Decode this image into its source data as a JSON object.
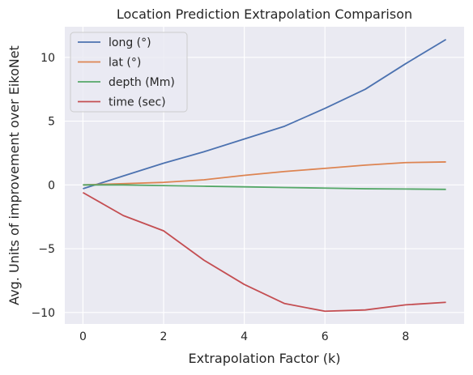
{
  "chart_data": {
    "type": "line",
    "title": "Location Prediction Extrapolation Comparison",
    "xlabel": "Extrapolation Factor (k)",
    "ylabel": "Avg. Units of improvement over EikoNet",
    "x": [
      0,
      1,
      2,
      3,
      4,
      5,
      6,
      7,
      8,
      9
    ],
    "xlim": [
      -0.45,
      9.45
    ],
    "ylim": [
      -10.9,
      12.4
    ],
    "xticks": [
      0,
      2,
      4,
      6,
      8
    ],
    "yticks": [
      -10,
      -5,
      0,
      5,
      10
    ],
    "xtick_labels": [
      "0",
      "2",
      "4",
      "6",
      "8"
    ],
    "ytick_labels": [
      "−10",
      "−5",
      "0",
      "5",
      "10"
    ],
    "grid": true,
    "legend_position": "upper-left",
    "series": [
      {
        "name": "long (°)",
        "color": "#4c72b0",
        "values": [
          -0.3,
          0.7,
          1.7,
          2.6,
          3.6,
          4.6,
          6.0,
          7.5,
          9.5,
          11.4
        ]
      },
      {
        "name": "lat (°)",
        "color": "#dd8452",
        "values": [
          0.0,
          0.1,
          0.2,
          0.4,
          0.75,
          1.05,
          1.3,
          1.55,
          1.75,
          1.8
        ]
      },
      {
        "name": "depth (Mm)",
        "color": "#55a868",
        "values": [
          0.0,
          0.0,
          -0.05,
          -0.1,
          -0.15,
          -0.2,
          -0.25,
          -0.3,
          -0.32,
          -0.35
        ]
      },
      {
        "name": "time (sec)",
        "color": "#c44e52",
        "values": [
          -0.6,
          -2.4,
          -3.6,
          -5.9,
          -7.8,
          -9.3,
          -9.9,
          -9.8,
          -9.4,
          -9.2
        ]
      }
    ]
  }
}
